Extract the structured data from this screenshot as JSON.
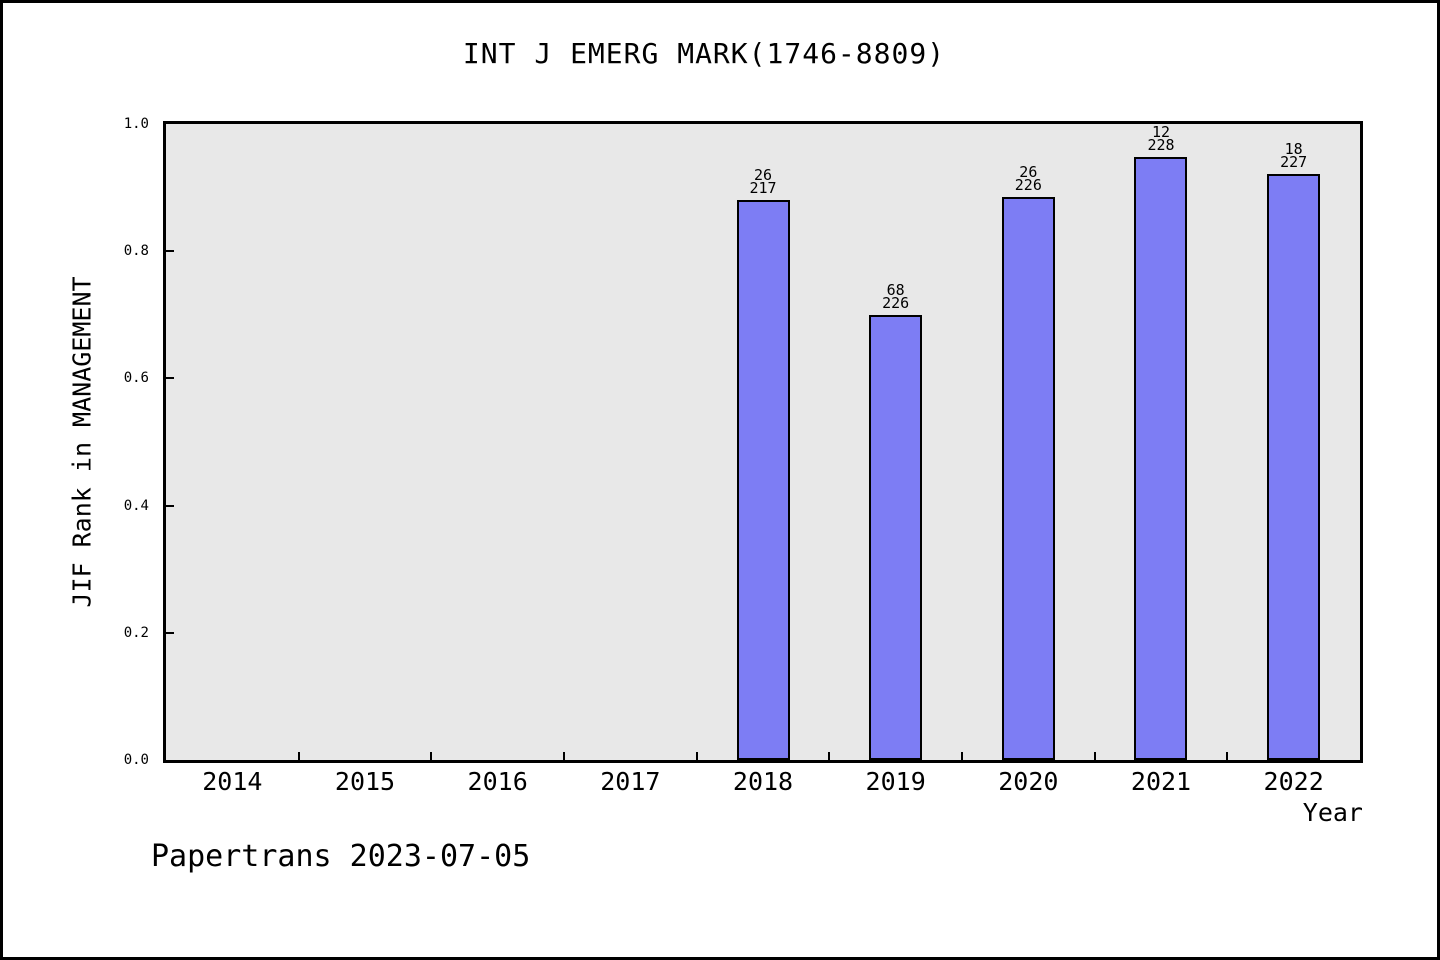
{
  "chart_data": {
    "type": "bar",
    "title": "INT J EMERG MARK(1746-8809)",
    "xlabel": "Year",
    "ylabel": "JIF Rank in MANAGEMENT",
    "ylim": [
      0.0,
      1.0
    ],
    "ytick_labels": [
      "0.0",
      "0.2",
      "0.4",
      "0.6",
      "0.8",
      "1.0"
    ],
    "categories": [
      "2014",
      "2015",
      "2016",
      "2017",
      "2018",
      "2019",
      "2020",
      "2021",
      "2022"
    ],
    "bars": [
      {
        "category": "2018",
        "rank": "26",
        "total": "217",
        "value": 0.8802
      },
      {
        "category": "2019",
        "rank": "68",
        "total": "226",
        "value": 0.6991
      },
      {
        "category": "2020",
        "rank": "26",
        "total": "226",
        "value": 0.885
      },
      {
        "category": "2021",
        "rank": "12",
        "total": "228",
        "value": 0.9474
      },
      {
        "category": "2022",
        "rank": "18",
        "total": "227",
        "value": 0.9207
      }
    ],
    "grid": false,
    "legend_position": "none",
    "colors": {
      "bar_fill": "#7d7df4",
      "bar_edge": "#000000",
      "plot_bg": "#e8e8e8",
      "frame": "#000000"
    }
  },
  "footer": {
    "text": "Papertrans 2023-07-05"
  }
}
